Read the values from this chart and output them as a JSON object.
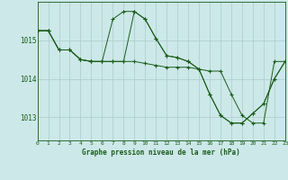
{
  "background_color": "#cce8e8",
  "plot_bg_color": "#cce8e8",
  "grid_color": "#aacccc",
  "line_color": "#1a5c1a",
  "marker_color": "#1a5c1a",
  "xlabel": "Graphe pression niveau de la mer (hPa)",
  "ylim": [
    1012.4,
    1016.0
  ],
  "xlim": [
    0,
    23
  ],
  "yticks": [
    1013,
    1014,
    1015
  ],
  "xticks": [
    0,
    1,
    2,
    3,
    4,
    5,
    6,
    7,
    8,
    9,
    10,
    11,
    12,
    13,
    14,
    15,
    16,
    17,
    18,
    19,
    20,
    21,
    22,
    23
  ],
  "series": [
    {
      "x": [
        0,
        1,
        2,
        3,
        4,
        5,
        6,
        7,
        8,
        9,
        10,
        11,
        12,
        13,
        14,
        15,
        16,
        17,
        18,
        19,
        20,
        21,
        22,
        23
      ],
      "y": [
        1015.25,
        1015.25,
        1014.75,
        1014.75,
        1014.5,
        1014.45,
        1014.45,
        1015.55,
        1015.75,
        1015.75,
        1015.55,
        1015.05,
        1014.6,
        1014.55,
        1014.45,
        1014.25,
        1013.6,
        1013.05,
        1012.85,
        1012.85,
        1013.1,
        1013.35,
        1014.0,
        1014.45
      ]
    },
    {
      "x": [
        0,
        1,
        2,
        3,
        4,
        5,
        6,
        7,
        8,
        9,
        10,
        11,
        12,
        13,
        14,
        15,
        16,
        17,
        18,
        19,
        20,
        21,
        22,
        23
      ],
      "y": [
        1015.25,
        1015.25,
        1014.75,
        1014.75,
        1014.5,
        1014.45,
        1014.45,
        1014.45,
        1014.45,
        1015.75,
        1015.55,
        1015.05,
        1014.6,
        1014.55,
        1014.45,
        1014.25,
        1013.6,
        1013.05,
        1012.85,
        1012.85,
        1013.1,
        1013.35,
        1014.0,
        1014.45
      ]
    },
    {
      "x": [
        0,
        1,
        2,
        3,
        4,
        5,
        6,
        7,
        8,
        9,
        10,
        11,
        12,
        13,
        14,
        15,
        16,
        17,
        18,
        19,
        20,
        21,
        22,
        23
      ],
      "y": [
        1015.25,
        1015.25,
        1014.75,
        1014.75,
        1014.5,
        1014.45,
        1014.45,
        1014.45,
        1014.45,
        1014.45,
        1014.4,
        1014.35,
        1014.3,
        1014.3,
        1014.3,
        1014.25,
        1014.2,
        1014.2,
        1013.6,
        1013.05,
        1012.85,
        1012.85,
        1014.45,
        1014.45
      ]
    }
  ]
}
